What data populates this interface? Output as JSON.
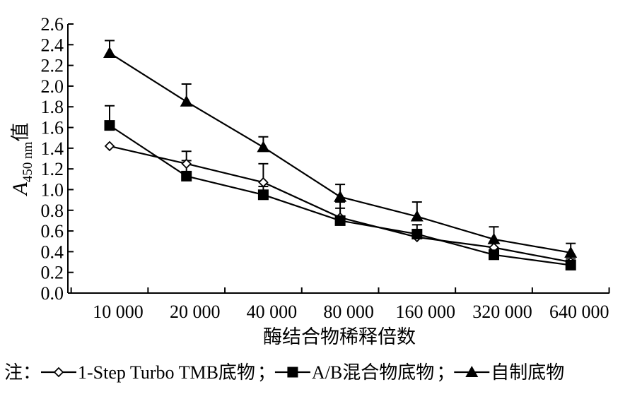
{
  "chart_data": {
    "type": "line",
    "categories": [
      "10 000",
      "20 000",
      "40 000",
      "80 000",
      "160 000",
      "320 000",
      "640 000"
    ],
    "xlabel": "酶结合物稀释倍数",
    "ylabel": {
      "italic": "A",
      "subscript": "450 nm",
      "suffix": "值"
    },
    "ylim": [
      0,
      2.6
    ],
    "yticks": [
      "0.0",
      "0.2",
      "0.4",
      "0.6",
      "0.8",
      "1.0",
      "1.2",
      "1.4",
      "1.6",
      "1.8",
      "2.0",
      "2.2",
      "2.4",
      "2.6"
    ],
    "grid": false,
    "legend_position": "bottom",
    "legend_prefix": "注：",
    "series": [
      {
        "name": "1-Step Turbo TMB底物",
        "marker": "diamond-open",
        "values": [
          1.42,
          1.25,
          1.07,
          0.73,
          0.54,
          0.44,
          0.3
        ],
        "errors": [
          0.0,
          0.12,
          0.18,
          0.15,
          0.05,
          0.05,
          0.05
        ]
      },
      {
        "name": "A/B混合物底物",
        "marker": "square-filled",
        "values": [
          1.62,
          1.13,
          0.95,
          0.7,
          0.57,
          0.37,
          0.27
        ],
        "errors": [
          0.19,
          0.15,
          0.08,
          0.12,
          0.09,
          0.05,
          0.06
        ]
      },
      {
        "name": "自制底物",
        "marker": "triangle-filled",
        "values": [
          2.32,
          1.85,
          1.41,
          0.93,
          0.74,
          0.52,
          0.39
        ],
        "errors": [
          0.12,
          0.17,
          0.1,
          0.12,
          0.14,
          0.12,
          0.09
        ]
      }
    ]
  },
  "colors": {
    "line": "#000000",
    "background": "#ffffff"
  }
}
